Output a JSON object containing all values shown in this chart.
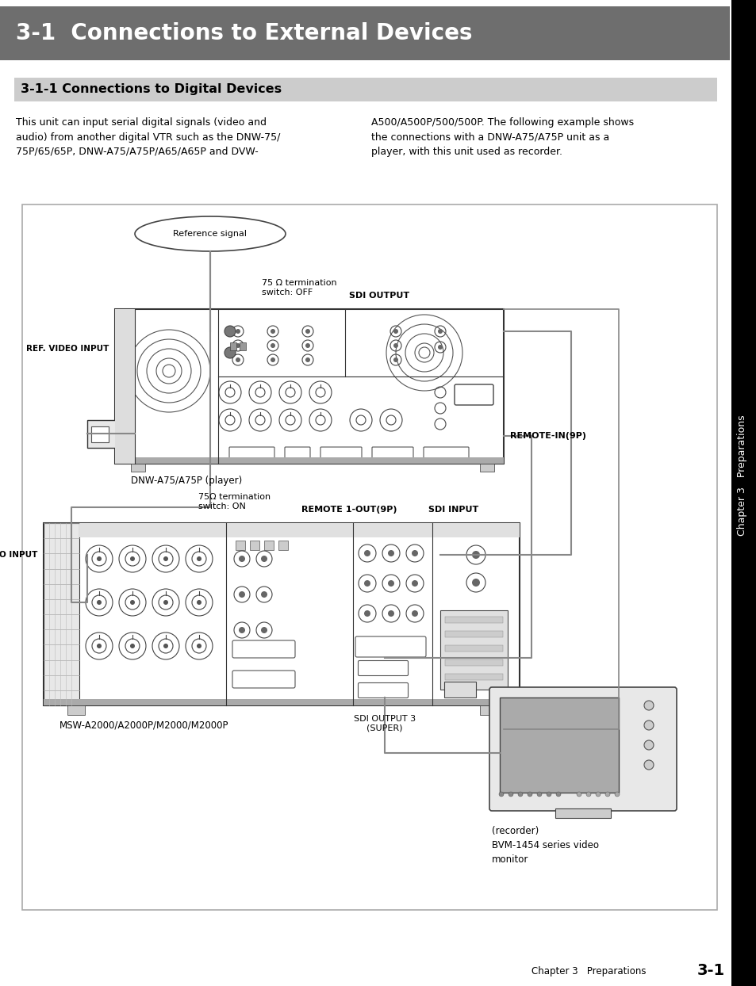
{
  "main_title": "3-1  Connections to External Devices",
  "main_title_bg": "#6e6e6e",
  "main_title_color": "#ffffff",
  "sub_title": "3-1-1 Connections to Digital Devices",
  "sub_title_bg": "#cccccc",
  "body_text_left": "This unit can input serial digital signals (video and\naudio) from another digital VTR such as the DNW-75/\n75P/65/65P, DNW-A75/A75P/A65/A65P and DVW-",
  "body_text_right": "A500/A500P/500/500P. The following example shows\nthe connections with a DNW-A75/A75P unit as a\nplayer, with this unit used as recorder.",
  "side_tab_bg": "#000000",
  "side_tab_text": "Chapter 3   Preparations",
  "footer_left": "Chapter 3   Preparations",
  "footer_right": "3-1",
  "page_bg": "#ffffff",
  "device1_label": "DNW-A75/A75P (player)",
  "device2_label": "MSW-A2000/A2000P/M2000/M2000P",
  "device3_label": "(recorder)\nBVM-1454 series video\nmonitor",
  "ref_signal_label": "Reference signal",
  "label_ref_video_input_top": "REF. VIDEO INPUT",
  "label_75ohm_top": "75 Ω termination\nswitch: OFF",
  "label_sdi_output": "SDI OUTPUT",
  "label_remote_in": "REMOTE-IN(9P)",
  "label_ref_video_input_bot": "REF. VIDEO INPUT",
  "label_75ohm_bot": "75Ω termination\nswitch: ON",
  "label_remote1_out": "REMOTE 1-OUT(9P)",
  "label_sdi_input": "SDI INPUT",
  "label_sdi_output3": "SDI OUTPUT 3\n(SUPER)",
  "line_color": "#555555",
  "device_edge": "#333333",
  "device_fill": "#f5f5f5"
}
